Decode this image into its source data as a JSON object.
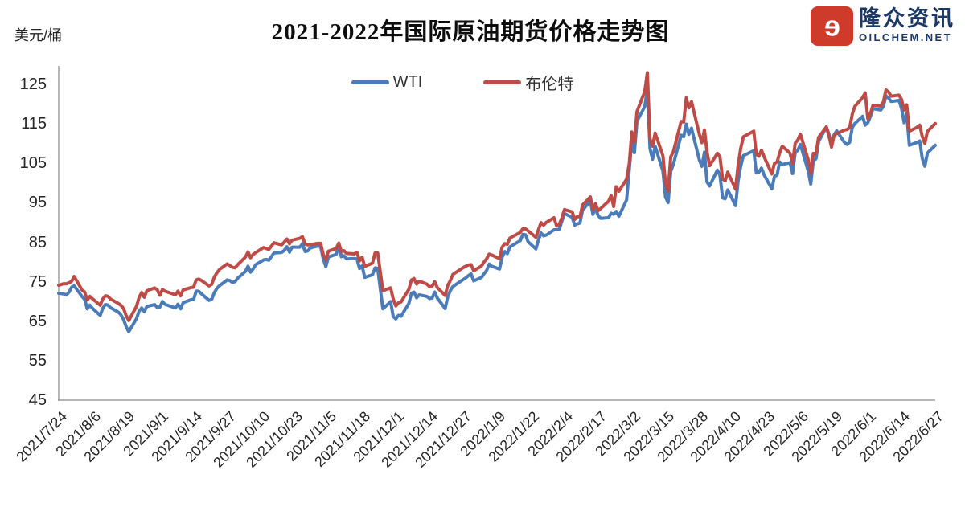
{
  "header": {
    "title": "2021-2022年国际原油期货价格走势图",
    "y_axis_unit": "美元/桶"
  },
  "logo": {
    "brand_name": "隆众资讯",
    "brand_domain": "OILCHEM.NET",
    "icon_color": "#cf3b2a",
    "text_color": "#1b3866"
  },
  "legend": [
    {
      "label": "WTI",
      "color": "#4a7cba"
    },
    {
      "label": "布伦特",
      "color": "#bf4b47"
    }
  ],
  "chart_data": {
    "type": "line",
    "title": "2021-2022年国际原油期货价格走势图",
    "xlabel": "",
    "ylabel": "美元/桶",
    "ylim": [
      45,
      125
    ],
    "y_ticks": [
      45,
      55,
      65,
      75,
      85,
      95,
      105,
      115,
      125
    ],
    "grid": false,
    "legend_position": "top-center",
    "x_start": "2021/7/24",
    "x_end": "2022/6/27",
    "x_tick_labels": [
      "2021/7/24",
      "2021/8/6",
      "2021/8/19",
      "2021/9/1",
      "2021/9/14",
      "2021/9/27",
      "2021/10/10",
      "2021/10/23",
      "2021/11/5",
      "2021/11/18",
      "2021/12/1",
      "2021/12/14",
      "2021/12/27",
      "2022/1/9",
      "2022/1/22",
      "2022/2/4",
      "2022/2/17",
      "2022/3/2",
      "2022/3/15",
      "2022/3/28",
      "2022/4/10",
      "2022/4/23",
      "2022/5/6",
      "2022/5/19",
      "2022/6/1",
      "2022/6/14",
      "2022/6/27"
    ],
    "dates": [
      "2021/7/24",
      "2021/7/26",
      "2021/7/27",
      "2021/7/28",
      "2021/7/29",
      "2021/7/30",
      "2021/8/2",
      "2021/8/3",
      "2021/8/4",
      "2021/8/5",
      "2021/8/6",
      "2021/8/9",
      "2021/8/10",
      "2021/8/11",
      "2021/8/12",
      "2021/8/13",
      "2021/8/16",
      "2021/8/17",
      "2021/8/18",
      "2021/8/19",
      "2021/8/20",
      "2021/8/23",
      "2021/8/24",
      "2021/8/25",
      "2021/8/26",
      "2021/8/27",
      "2021/8/30",
      "2021/8/31",
      "2021/9/1",
      "2021/9/2",
      "2021/9/3",
      "2021/9/7",
      "2021/9/8",
      "2021/9/9",
      "2021/9/10",
      "2021/9/13",
      "2021/9/14",
      "2021/9/15",
      "2021/9/16",
      "2021/9/17",
      "2021/9/20",
      "2021/9/21",
      "2021/9/22",
      "2021/9/23",
      "2021/9/24",
      "2021/9/27",
      "2021/9/28",
      "2021/9/29",
      "2021/9/30",
      "2021/10/1",
      "2021/10/4",
      "2021/10/5",
      "2021/10/6",
      "2021/10/7",
      "2021/10/8",
      "2021/10/11",
      "2021/10/12",
      "2021/10/13",
      "2021/10/14",
      "2021/10/15",
      "2021/10/18",
      "2021/10/19",
      "2021/10/20",
      "2021/10/21",
      "2021/10/22",
      "2021/10/25",
      "2021/10/26",
      "2021/10/27",
      "2021/10/28",
      "2021/10/29",
      "2021/11/1",
      "2021/11/2",
      "2021/11/3",
      "2021/11/4",
      "2021/11/5",
      "2021/11/8",
      "2021/11/9",
      "2021/11/10",
      "2021/11/11",
      "2021/11/12",
      "2021/11/15",
      "2021/11/16",
      "2021/11/17",
      "2021/11/18",
      "2021/11/19",
      "2021/11/22",
      "2021/11/23",
      "2021/11/24",
      "2021/11/26",
      "2021/11/29",
      "2021/11/30",
      "2021/12/1",
      "2021/12/2",
      "2021/12/3",
      "2021/12/6",
      "2021/12/7",
      "2021/12/8",
      "2021/12/9",
      "2021/12/10",
      "2021/12/13",
      "2021/12/14",
      "2021/12/15",
      "2021/12/16",
      "2021/12/17",
      "2021/12/20",
      "2021/12/21",
      "2021/12/22",
      "2021/12/23",
      "2021/12/27",
      "2021/12/28",
      "2021/12/29",
      "2021/12/30",
      "2021/12/31",
      "2022/1/3",
      "2022/1/4",
      "2022/1/5",
      "2022/1/6",
      "2022/1/7",
      "2022/1/10",
      "2022/1/11",
      "2022/1/12",
      "2022/1/13",
      "2022/1/14",
      "2022/1/18",
      "2022/1/19",
      "2022/1/20",
      "2022/1/21",
      "2022/1/24",
      "2022/1/25",
      "2022/1/26",
      "2022/1/27",
      "2022/1/28",
      "2022/1/31",
      "2022/2/1",
      "2022/2/2",
      "2022/2/3",
      "2022/2/4",
      "2022/2/7",
      "2022/2/8",
      "2022/2/9",
      "2022/2/10",
      "2022/2/11",
      "2022/2/14",
      "2022/2/15",
      "2022/2/16",
      "2022/2/17",
      "2022/2/18",
      "2022/2/21",
      "2022/2/22",
      "2022/2/23",
      "2022/2/24",
      "2022/2/25",
      "2022/2/28",
      "2022/3/1",
      "2022/3/2",
      "2022/3/3",
      "2022/3/4",
      "2022/3/7",
      "2022/3/8",
      "2022/3/9",
      "2022/3/10",
      "2022/3/11",
      "2022/3/14",
      "2022/3/15",
      "2022/3/16",
      "2022/3/17",
      "2022/3/18",
      "2022/3/21",
      "2022/3/22",
      "2022/3/23",
      "2022/3/24",
      "2022/3/25",
      "2022/3/28",
      "2022/3/29",
      "2022/3/30",
      "2022/3/31",
      "2022/4/1",
      "2022/4/4",
      "2022/4/5",
      "2022/4/6",
      "2022/4/7",
      "2022/4/8",
      "2022/4/11",
      "2022/4/12",
      "2022/4/13",
      "2022/4/14",
      "2022/4/18",
      "2022/4/19",
      "2022/4/20",
      "2022/4/21",
      "2022/4/22",
      "2022/4/25",
      "2022/4/26",
      "2022/4/27",
      "2022/4/28",
      "2022/4/29",
      "2022/5/2",
      "2022/5/3",
      "2022/5/4",
      "2022/5/5",
      "2022/5/6",
      "2022/5/9",
      "2022/5/10",
      "2022/5/11",
      "2022/5/12",
      "2022/5/13",
      "2022/5/16",
      "2022/5/17",
      "2022/5/18",
      "2022/5/19",
      "2022/5/20",
      "2022/5/23",
      "2022/5/24",
      "2022/5/25",
      "2022/5/26",
      "2022/5/27",
      "2022/5/30",
      "2022/5/31",
      "2022/6/1",
      "2022/6/2",
      "2022/6/3",
      "2022/6/6",
      "2022/6/7",
      "2022/6/8",
      "2022/6/9",
      "2022/6/10",
      "2022/6/13",
      "2022/6/14",
      "2022/6/15",
      "2022/6/16",
      "2022/6/17",
      "2022/6/20",
      "2022/6/21",
      "2022/6/22",
      "2022/6/23",
      "2022/6/24",
      "2022/6/27"
    ],
    "series": [
      {
        "name": "WTI",
        "color": "#4a7cba",
        "values": [
          72.07,
          71.91,
          71.65,
          72.39,
          73.62,
          73.95,
          71.26,
          70.56,
          68.15,
          69.09,
          68.28,
          66.48,
          68.29,
          69.25,
          69.09,
          68.44,
          67.29,
          66.59,
          65.46,
          63.69,
          62.32,
          65.64,
          67.54,
          68.36,
          67.42,
          68.74,
          69.21,
          68.5,
          68.59,
          69.99,
          69.29,
          68.35,
          69.3,
          68.14,
          69.72,
          70.45,
          70.46,
          72.61,
          72.61,
          71.97,
          70.29,
          70.56,
          72.23,
          73.3,
          73.98,
          75.45,
          75.29,
          74.83,
          75.03,
          75.88,
          77.62,
          78.93,
          77.43,
          78.3,
          79.35,
          80.52,
          80.64,
          80.44,
          81.31,
          82.28,
          82.44,
          82.96,
          83.87,
          82.5,
          83.76,
          83.76,
          84.65,
          82.66,
          82.81,
          83.57,
          84.05,
          83.91,
          80.86,
          78.81,
          81.27,
          81.93,
          84.15,
          81.34,
          81.59,
          80.79,
          80.88,
          80.76,
          78.36,
          79.01,
          76.1,
          76.75,
          78.5,
          78.39,
          68.15,
          69.95,
          66.18,
          65.57,
          66.5,
          66.26,
          69.49,
          72.05,
          72.36,
          70.94,
          71.67,
          71.29,
          70.73,
          70.87,
          72.38,
          70.86,
          68.23,
          71.12,
          72.76,
          73.79,
          75.57,
          75.98,
          76.56,
          76.99,
          75.21,
          76.08,
          76.99,
          77.85,
          79.46,
          78.9,
          78.23,
          81.22,
          82.64,
          82.12,
          83.82,
          85.43,
          86.96,
          86.9,
          85.14,
          83.31,
          85.6,
          87.35,
          86.61,
          86.82,
          88.15,
          88.2,
          88.26,
          90.27,
          92.31,
          91.32,
          89.36,
          89.66,
          89.88,
          93.1,
          95.46,
          92.07,
          93.66,
          91.76,
          91.07,
          91.2,
          92.35,
          92.1,
          92.81,
          91.59,
          95.72,
          103.41,
          110.6,
          107.67,
          115.68,
          119.4,
          123.7,
          108.7,
          106.02,
          109.33,
          103.01,
          96.44,
          95.04,
          102.98,
          104.7,
          112.12,
          111.76,
          114.93,
          112.34,
          113.9,
          105.96,
          104.24,
          107.82,
          100.28,
          99.27,
          103.28,
          101.96,
          96.23,
          96.03,
          98.26,
          94.29,
          100.6,
          104.25,
          106.95,
          108.21,
          102.56,
          102.75,
          103.79,
          102.07,
          98.54,
          101.7,
          102.02,
          105.36,
          104.69,
          105.17,
          102.41,
          107.81,
          108.26,
          109.77,
          103.09,
          99.76,
          105.71,
          106.13,
          110.49,
          114.2,
          112.4,
          109.59,
          112.21,
          113.23,
          110.29,
          109.77,
          110.33,
          114.09,
          115.07,
          116.9,
          114.67,
          115.26,
          116.87,
          118.87,
          118.5,
          119.41,
          122.11,
          121.51,
          120.67,
          120.93,
          118.93,
          115.31,
          117.59,
          109.56,
          110.3,
          110.65,
          106.19,
          104.27,
          107.62,
          109.57
        ]
      },
      {
        "name": "布伦特",
        "color": "#bf4b47",
        "values": [
          74.1,
          74.5,
          74.48,
          74.74,
          75.1,
          76.33,
          72.89,
          72.41,
          70.38,
          71.29,
          70.7,
          69.04,
          70.63,
          71.44,
          71.31,
          70.59,
          69.51,
          69.03,
          68.23,
          66.45,
          65.18,
          68.75,
          71.05,
          72.25,
          71.07,
          72.7,
          73.41,
          72.99,
          71.59,
          73.03,
          72.61,
          71.69,
          72.6,
          71.45,
          72.92,
          73.51,
          73.6,
          75.46,
          75.67,
          75.34,
          73.92,
          74.36,
          76.19,
          77.25,
          78.09,
          79.53,
          79.09,
          78.64,
          78.52,
          79.28,
          81.26,
          82.56,
          81.08,
          81.95,
          82.39,
          83.65,
          83.42,
          83.18,
          84.0,
          84.86,
          84.33,
          85.08,
          85.82,
          84.61,
          85.53,
          85.99,
          86.4,
          84.58,
          84.32,
          84.38,
          84.71,
          84.72,
          81.99,
          80.54,
          82.74,
          83.43,
          84.78,
          82.64,
          82.87,
          82.17,
          82.05,
          82.43,
          80.28,
          81.24,
          78.89,
          79.7,
          82.31,
          82.25,
          72.72,
          73.44,
          70.57,
          68.87,
          69.67,
          69.88,
          73.08,
          75.44,
          75.82,
          74.42,
          75.15,
          74.39,
          73.7,
          73.88,
          75.02,
          73.52,
          71.52,
          73.98,
          75.29,
          76.85,
          78.6,
          78.94,
          79.23,
          79.32,
          77.78,
          78.98,
          80.0,
          80.8,
          81.99,
          81.75,
          80.87,
          83.72,
          84.67,
          84.47,
          86.06,
          87.51,
          88.44,
          88.38,
          87.89,
          86.27,
          88.2,
          89.96,
          89.34,
          90.03,
          91.21,
          89.16,
          89.47,
          91.11,
          93.27,
          92.69,
          90.78,
          91.55,
          91.41,
          94.44,
          96.48,
          93.28,
          94.81,
          92.97,
          93.54,
          95.39,
          96.84,
          94.05,
          99.08,
          97.93,
          100.99,
          104.97,
          112.93,
          110.46,
          118.11,
          123.21,
          127.98,
          111.14,
          109.33,
          112.67,
          106.9,
          99.91,
          98.02,
          106.64,
          107.93,
          115.62,
          115.48,
          121.6,
          119.03,
          120.65,
          112.48,
          110.23,
          113.45,
          107.91,
          104.39,
          107.53,
          106.64,
          101.07,
          100.58,
          102.78,
          98.48,
          104.64,
          108.78,
          111.7,
          113.16,
          107.25,
          106.8,
          108.33,
          106.65,
          102.32,
          104.99,
          105.32,
          107.59,
          109.34,
          107.58,
          104.97,
          110.14,
          110.9,
          112.39,
          105.94,
          102.46,
          107.51,
          107.45,
          111.55,
          114.24,
          111.93,
          109.11,
          112.04,
          112.55,
          113.42,
          113.56,
          114.03,
          117.4,
          119.43,
          121.67,
          122.84,
          116.29,
          117.61,
          119.72,
          119.51,
          120.57,
          123.58,
          123.07,
          122.01,
          122.27,
          121.17,
          118.51,
          119.81,
          113.12,
          114.13,
          114.65,
          111.74,
          110.05,
          113.12,
          115.09
        ]
      }
    ]
  }
}
